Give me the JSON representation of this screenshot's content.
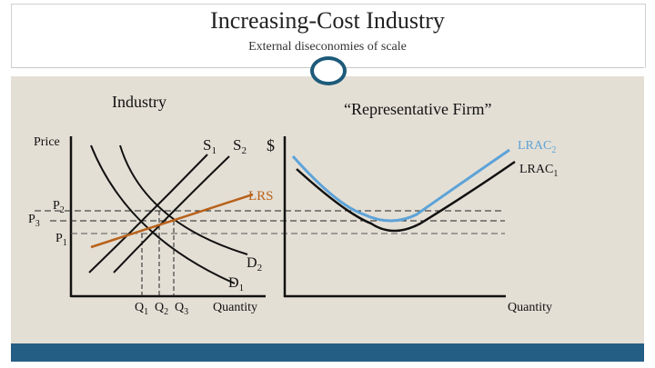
{
  "slide": {
    "title": "Increasing-Cost Industry",
    "subtitle": "External diseconomies of scale"
  },
  "industry_panel": {
    "heading": "Industry",
    "y_axis_label": "Price",
    "x_axis_label": "Quantity",
    "supply_labels": {
      "s1_base": "S",
      "s1_sub": "1",
      "s2_base": "S",
      "s2_sub": "2"
    },
    "demand_labels": {
      "d1_base": "D",
      "d1_sub": "1",
      "d2_base": "D",
      "d2_sub": "2"
    },
    "lrs_label": "LRS",
    "price_labels": [
      {
        "base": "P",
        "sub": "2"
      },
      {
        "base": "P",
        "sub": "3"
      },
      {
        "base": "P",
        "sub": "1"
      }
    ],
    "quantity_labels": [
      {
        "base": "Q",
        "sub": "1"
      },
      {
        "base": "Q",
        "sub": "2"
      },
      {
        "base": "Q",
        "sub": "3"
      }
    ]
  },
  "firm_panel": {
    "heading": "“Representative Firm”",
    "y_axis_label": "$",
    "x_axis_label": "Quantity",
    "lrac2_label": {
      "base": "LRAC",
      "sub": "2"
    },
    "lrac1_label": {
      "base": "LRAC",
      "sub": "1"
    }
  },
  "colors": {
    "lrs_line": "#b8621b",
    "lrac2_curve": "#5da3d8",
    "curve": "#111111",
    "footer_bar": "#255e85",
    "panel_bg": "#e4dfd5",
    "ring": "#1d5a7a"
  }
}
